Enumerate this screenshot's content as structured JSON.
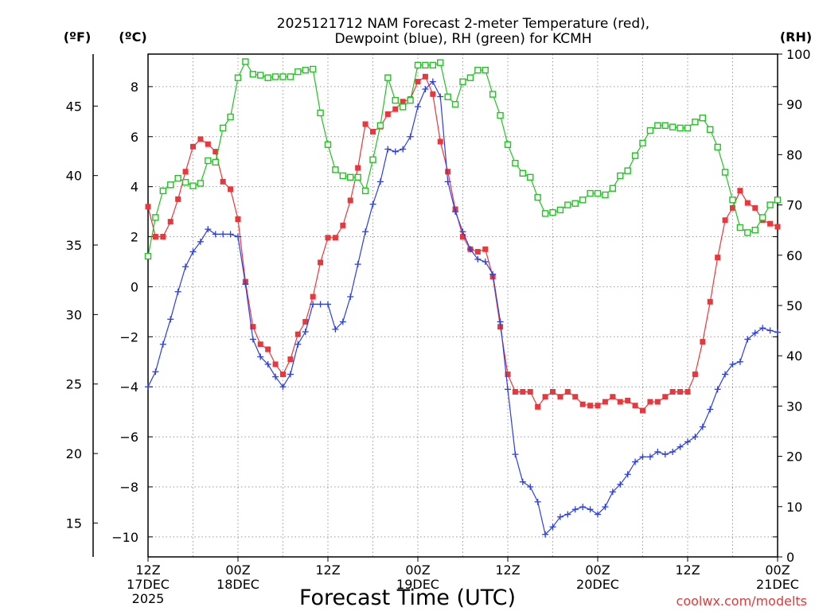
{
  "chart_data": {
    "type": "line",
    "title_lines": [
      "2025121712 NAM Forecast 2-meter Temperature (red),",
      "Dewpoint (blue), RH (green) for KCMH"
    ],
    "xlabel": "Forecast Time (UTC)",
    "credit": "coolwx.com/modelts",
    "units": {
      "fahrenheit": "(ºF)",
      "celsius": "(ºC)",
      "rh": "(RH)"
    },
    "x_hours": [
      0,
      1,
      2,
      3,
      4,
      5,
      6,
      7,
      8,
      9,
      10,
      11,
      12,
      13,
      14,
      15,
      16,
      17,
      18,
      19,
      20,
      21,
      22,
      23,
      24,
      25,
      26,
      27,
      28,
      29,
      30,
      31,
      32,
      33,
      34,
      35,
      36,
      37,
      38,
      39,
      40,
      41,
      42,
      43,
      44,
      45,
      46,
      47,
      48,
      49,
      50,
      51,
      52,
      53,
      54,
      55,
      56,
      57,
      58,
      59,
      60,
      61,
      62,
      63,
      64,
      65,
      66,
      67,
      68,
      69,
      70,
      71,
      72,
      73,
      74,
      75,
      76,
      77,
      78,
      79,
      80,
      81,
      82,
      83,
      84
    ],
    "xlim": [
      0,
      84
    ],
    "x_ticks": [
      {
        "hour": 0,
        "lines": [
          "12Z",
          "17DEC",
          "2025"
        ]
      },
      {
        "hour": 12,
        "lines": [
          "00Z",
          "18DEC"
        ]
      },
      {
        "hour": 24,
        "lines": [
          "12Z"
        ]
      },
      {
        "hour": 36,
        "lines": [
          "00Z",
          "19DEC"
        ]
      },
      {
        "hour": 48,
        "lines": [
          "12Z"
        ]
      },
      {
        "hour": 60,
        "lines": [
          "00Z",
          "20DEC"
        ]
      },
      {
        "hour": 72,
        "lines": [
          "12Z"
        ]
      },
      {
        "hour": 84,
        "lines": [
          "00Z",
          "21DEC"
        ]
      }
    ],
    "y_celsius": {
      "lim": [
        -10.8,
        9.3
      ],
      "ticks": [
        -10,
        -8,
        -6,
        -4,
        -2,
        0,
        2,
        4,
        6,
        8
      ]
    },
    "y_fahrenheit": {
      "ticks": [
        15,
        20,
        25,
        30,
        35,
        40,
        45
      ]
    },
    "y_rh": {
      "lim": [
        0,
        100
      ],
      "ticks": [
        0,
        10,
        20,
        30,
        40,
        50,
        60,
        70,
        80,
        90,
        100
      ]
    },
    "series": [
      {
        "name": "2-meter Temperature (°C)",
        "color": "#e8383d",
        "marker": "filled-square",
        "axis": "celsius",
        "values": [
          3.2,
          2.0,
          2.0,
          2.6,
          3.5,
          4.6,
          5.6,
          5.9,
          5.7,
          5.4,
          4.2,
          3.9,
          2.7,
          0.2,
          -1.6,
          -2.3,
          -2.5,
          -3.1,
          -3.5,
          -2.9,
          -1.9,
          -1.4,
          -0.4,
          0.97,
          1.96,
          1.96,
          2.45,
          3.45,
          4.75,
          6.5,
          6.2,
          6.4,
          6.9,
          7.1,
          7.4,
          7.5,
          8.2,
          8.4,
          7.7,
          5.8,
          4.6,
          3.1,
          2.0,
          1.5,
          1.4,
          1.5,
          0.4,
          -1.6,
          -3.5,
          -4.2,
          -4.2,
          -4.2,
          -4.8,
          -4.4,
          -4.2,
          -4.4,
          -4.2,
          -4.4,
          -4.7,
          -4.75,
          -4.75,
          -4.6,
          -4.4,
          -4.6,
          -4.55,
          -4.75,
          -4.95,
          -4.6,
          -4.6,
          -4.4,
          -4.2,
          -4.2,
          -4.2,
          -3.5,
          -2.2,
          -0.6,
          1.17,
          2.66,
          3.15,
          3.84,
          3.35,
          3.15,
          2.66,
          2.52,
          2.4
        ]
      },
      {
        "name": "Dewpoint (°C)",
        "color": "#2d3fe0",
        "marker": "plus",
        "axis": "celsius",
        "values": [
          -4.0,
          -3.4,
          -2.3,
          -1.3,
          -0.2,
          0.8,
          1.4,
          1.8,
          2.3,
          2.1,
          2.1,
          2.1,
          2.0,
          0.1,
          -2.1,
          -2.8,
          -3.1,
          -3.6,
          -4.0,
          -3.5,
          -2.3,
          -1.8,
          -0.7,
          -0.7,
          -0.7,
          -1.7,
          -1.4,
          -0.4,
          0.9,
          2.2,
          3.3,
          4.2,
          5.5,
          5.4,
          5.5,
          6.0,
          7.2,
          7.9,
          8.2,
          7.6,
          4.2,
          3.0,
          2.2,
          1.5,
          1.1,
          1.0,
          0.5,
          -1.4,
          -4.1,
          -6.7,
          -7.8,
          -8.0,
          -8.6,
          -9.9,
          -9.6,
          -9.2,
          -9.1,
          -8.9,
          -8.8,
          -8.9,
          -9.1,
          -8.8,
          -8.2,
          -7.9,
          -7.5,
          -7.0,
          -6.8,
          -6.8,
          -6.6,
          -6.7,
          -6.6,
          -6.4,
          -6.2,
          -6.0,
          -5.6,
          -4.9,
          -4.1,
          -3.5,
          -3.1,
          -3.0,
          -2.1,
          -1.85,
          -1.65,
          -1.75,
          -1.82
        ]
      },
      {
        "name": "RH (%)",
        "color": "#22c322",
        "marker": "open-square",
        "axis": "rh",
        "values": [
          59.8,
          67.5,
          72.8,
          74.0,
          75.3,
          74.5,
          73.8,
          74.3,
          78.8,
          78.5,
          85.3,
          87.5,
          95.3,
          98.5,
          96.0,
          95.8,
          95.3,
          95.5,
          95.5,
          95.5,
          96.5,
          96.8,
          97.0,
          88.3,
          82.0,
          77.0,
          75.8,
          75.5,
          75.5,
          72.8,
          79.0,
          85.8,
          95.3,
          90.8,
          89.5,
          90.8,
          97.8,
          97.8,
          97.8,
          98.3,
          91.5,
          90.0,
          94.5,
          95.3,
          96.8,
          96.8,
          92.0,
          87.8,
          82.0,
          78.3,
          76.3,
          75.5,
          71.5,
          68.3,
          68.5,
          69.0,
          70.0,
          70.3,
          71.0,
          72.3,
          72.3,
          72.0,
          73.3,
          75.8,
          76.8,
          79.8,
          82.3,
          84.8,
          85.8,
          85.8,
          85.5,
          85.3,
          85.3,
          86.5,
          87.3,
          85.0,
          81.5,
          76.5,
          71.0,
          65.5,
          64.5,
          65.0,
          67.5,
          70.0,
          71.0
        ]
      }
    ]
  }
}
